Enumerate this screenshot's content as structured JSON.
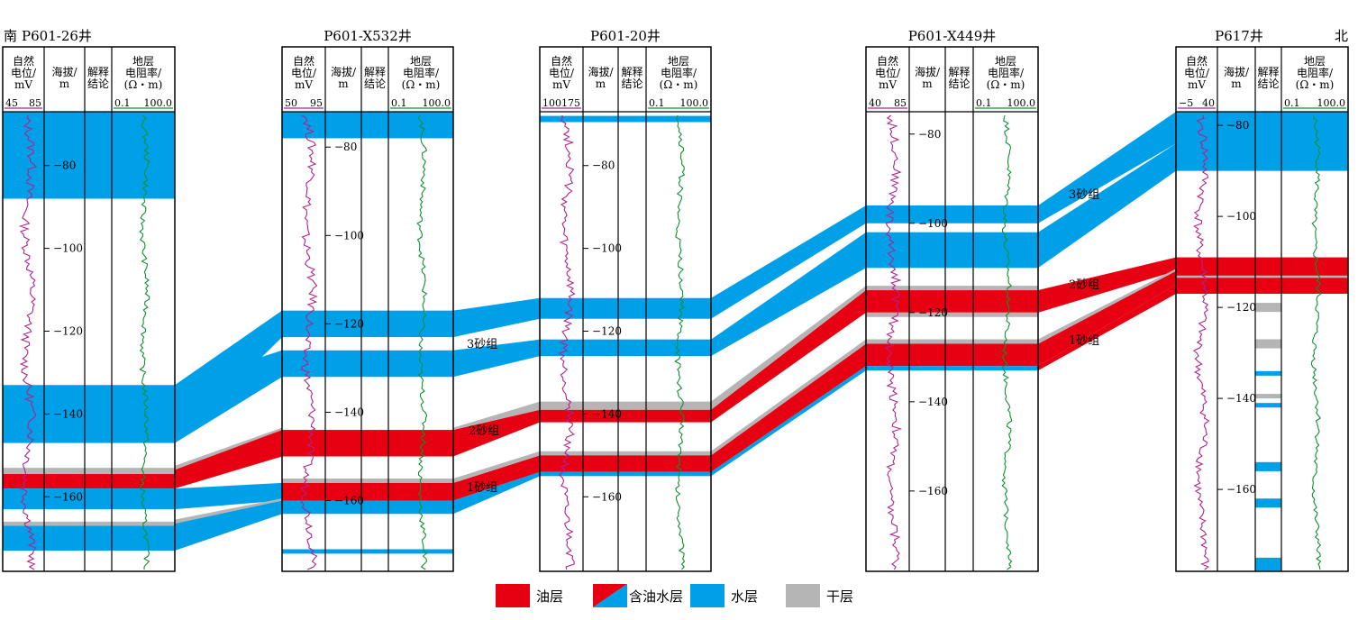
{
  "direction": {
    "left": "南",
    "right": "北"
  },
  "colors": {
    "oil": "#e60012",
    "water": "#00a0e9",
    "dry": "#b5b5b5",
    "sp_curve": "#b0238c",
    "res_curve": "#109030",
    "border": "#000000"
  },
  "track_headers": {
    "sp": [
      "自然",
      "电位/",
      "mV"
    ],
    "elev": [
      "海拔/",
      "m"
    ],
    "interp": [
      "解释",
      "结论"
    ],
    "res": [
      "地层",
      "电阻率/",
      "(Ω・m)"
    ]
  },
  "wells": [
    {
      "name": "P601-26井",
      "sp_scale": [
        "45",
        "85"
      ],
      "res_scale": [
        "0.1",
        "100.0"
      ],
      "depth_ticks": [
        "−80",
        "−100",
        "−120",
        "−140",
        "−160"
      ]
    },
    {
      "name": "P601-X532井",
      "sp_scale": [
        "50",
        "95"
      ],
      "res_scale": [
        "0.1",
        "100.0"
      ],
      "depth_ticks": [
        "−80",
        "−100",
        "−120",
        "−140",
        "−160"
      ]
    },
    {
      "name": "P601-20井",
      "sp_scale": [
        "100",
        "175"
      ],
      "res_scale": [
        "0.1",
        "100.0"
      ],
      "depth_ticks": [
        "−80",
        "−100",
        "−120",
        "−140",
        "−160"
      ]
    },
    {
      "name": "P601-X449井",
      "sp_scale": [
        "40",
        "85"
      ],
      "res_scale": [
        "0.1",
        "100.0"
      ],
      "depth_ticks": [
        "−80",
        "−100",
        "−120",
        "−140",
        "−160"
      ]
    },
    {
      "name": "P617井",
      "sp_scale": [
        "−5",
        "40"
      ],
      "res_scale": [
        "0.1",
        "100.0"
      ],
      "depth_ticks": [
        "−80",
        "−100",
        "−120",
        "−140",
        "−160"
      ]
    }
  ],
  "sand_groups": [
    "3砂组",
    "2砂组",
    "1砂组"
  ],
  "legend": [
    {
      "key": "oil",
      "label": "油层"
    },
    {
      "key": "oilwater",
      "label": "含油水层"
    },
    {
      "key": "water",
      "label": "水层"
    },
    {
      "key": "dry",
      "label": "干层"
    }
  ]
}
